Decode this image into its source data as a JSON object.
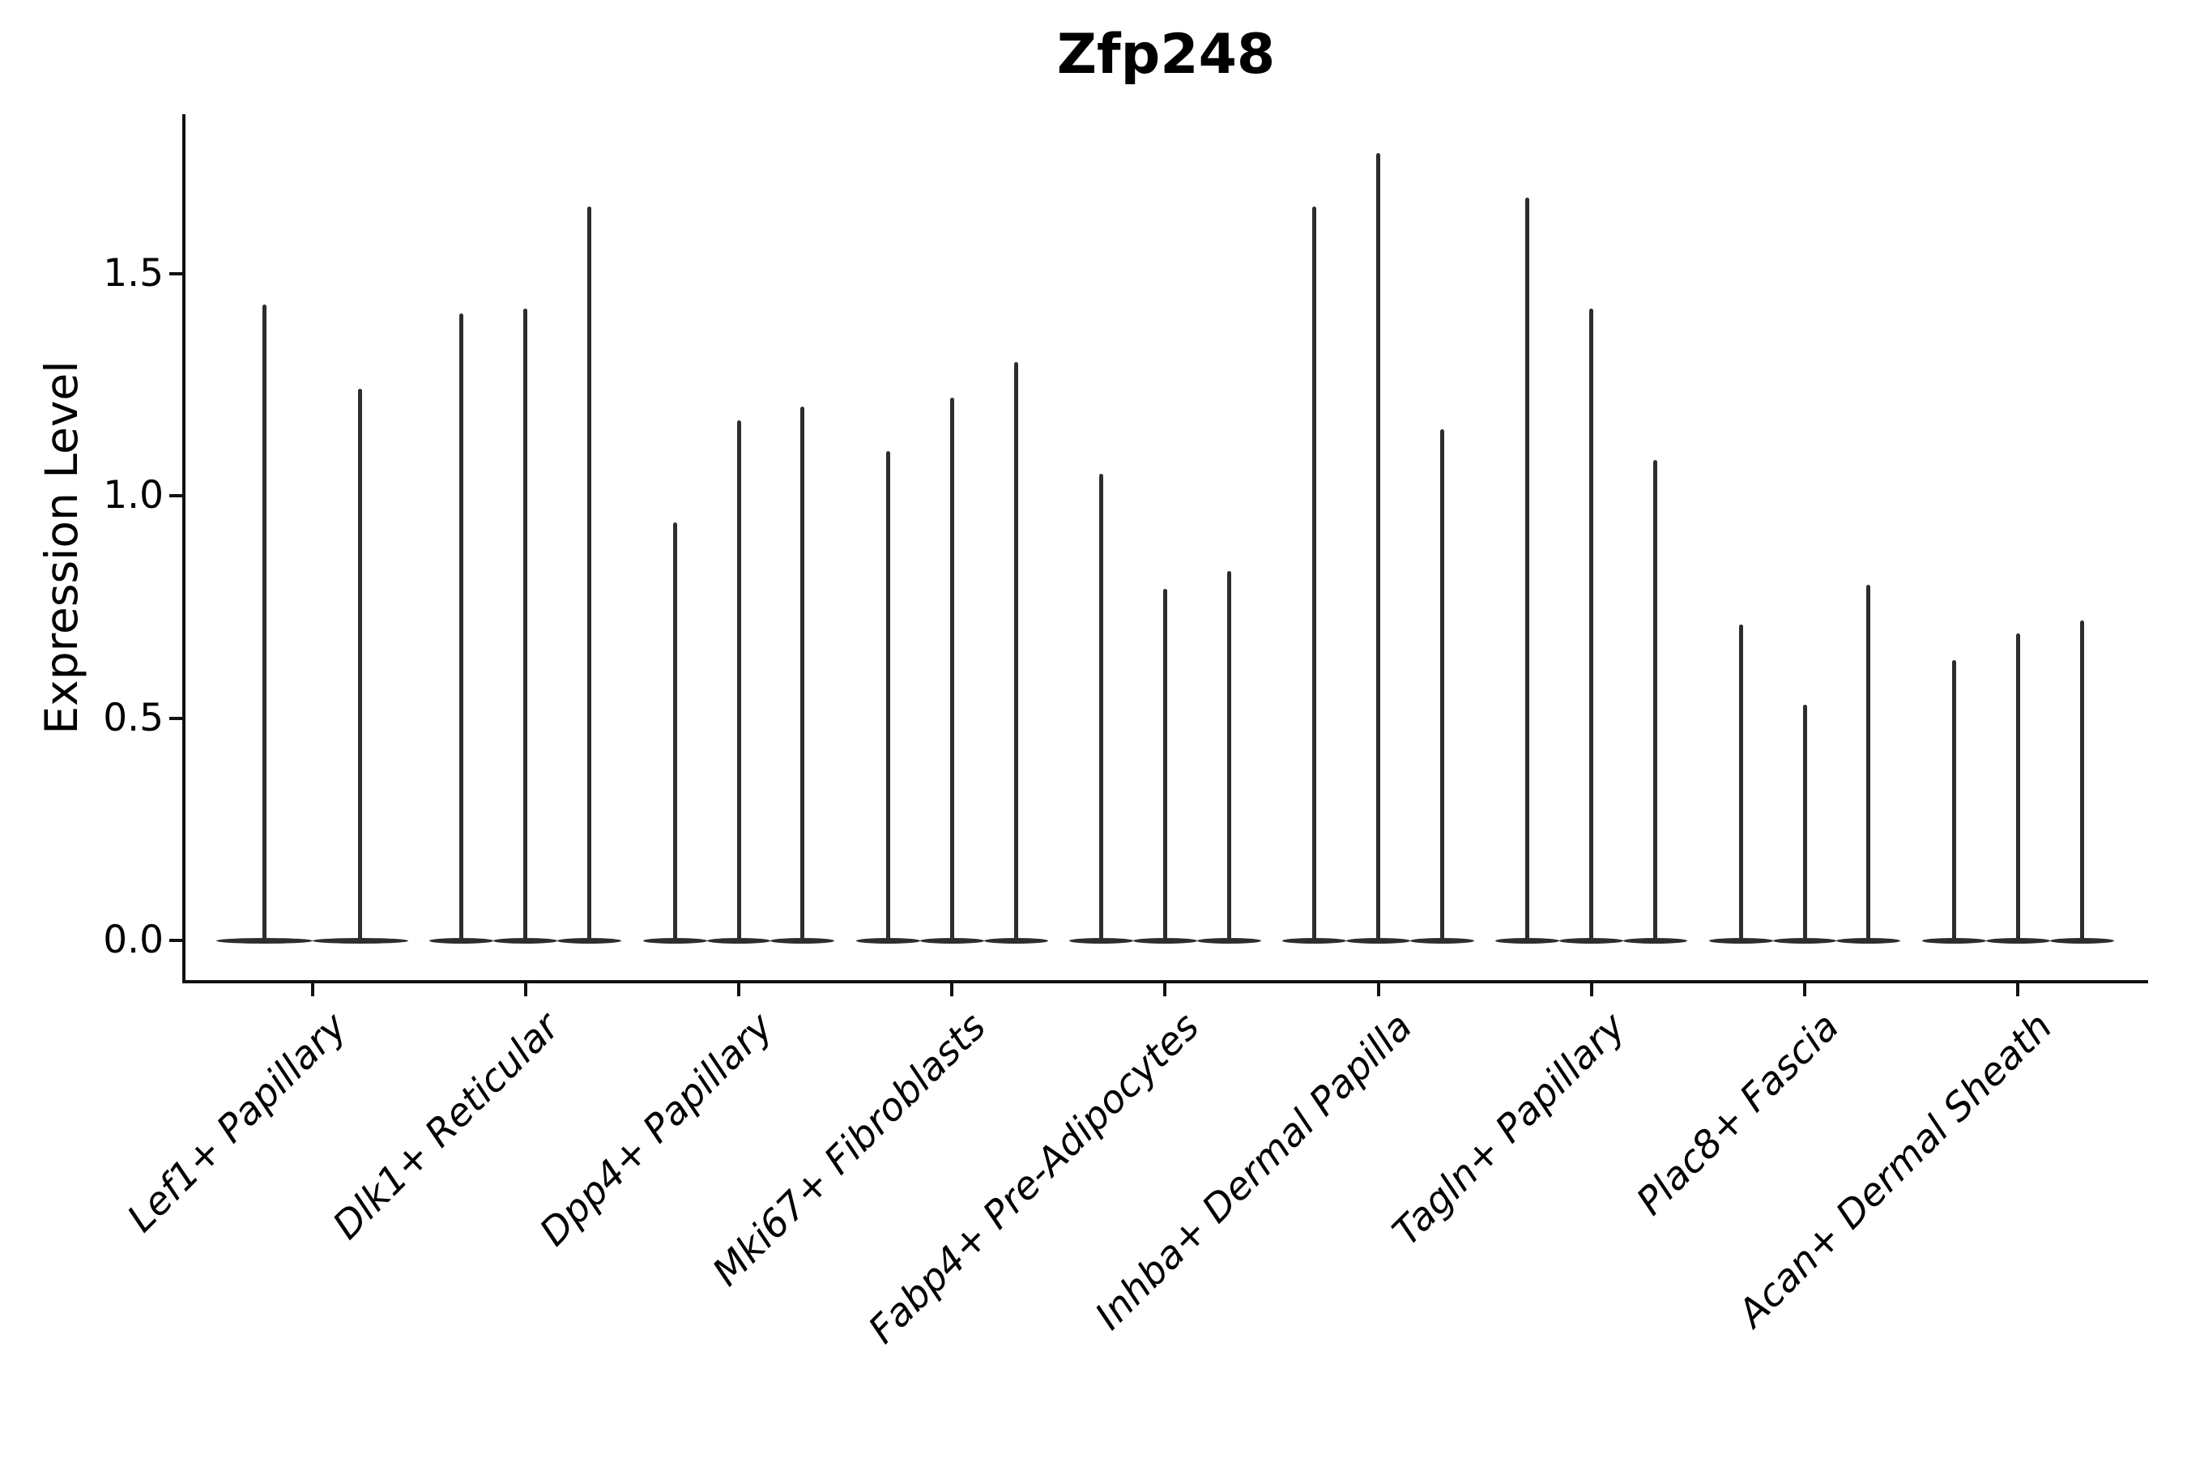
{
  "title": "Zfp248",
  "chart_data": {
    "type": "violin",
    "title": "Zfp248",
    "subtitle": "",
    "xlabel": "",
    "ylabel": "Expression Level",
    "legend_position": "none",
    "grid": false,
    "ylim": [
      -0.09,
      1.86
    ],
    "yticks": [
      "0.0",
      "0.5",
      "1.0",
      "1.5"
    ],
    "ytick_values": [
      0.0,
      0.5,
      1.0,
      1.5
    ],
    "categories": [
      "Lef1+ Papillary",
      "Dlk1+ Reticular",
      "Dpp4+ Papillary",
      "Mki67+ Fibroblasts",
      "Fabp4+ Pre-Adipocytes",
      "Inhba+ Dermal Papilla",
      "Tagln+ Papillary",
      "Plac8+ Fascia",
      "Acan+ Dermal Sheath"
    ],
    "groups": [
      {
        "category": "Lef1+ Papillary",
        "violin_maxima": [
          1.43,
          1.24
        ]
      },
      {
        "category": "Dlk1+ Reticular",
        "violin_maxima": [
          1.41,
          1.42,
          1.65
        ]
      },
      {
        "category": "Dpp4+ Papillary",
        "violin_maxima": [
          0.94,
          1.17,
          1.2
        ]
      },
      {
        "category": "Mki67+ Fibroblasts",
        "violin_maxima": [
          1.1,
          1.22,
          1.3
        ]
      },
      {
        "category": "Fabp4+ Pre-Adipocytes",
        "violin_maxima": [
          1.05,
          0.79,
          0.83
        ]
      },
      {
        "category": "Inhba+ Dermal Papilla",
        "violin_maxima": [
          1.65,
          1.77,
          1.15
        ]
      },
      {
        "category": "Tagln+ Papillary",
        "violin_maxima": [
          1.67,
          1.42,
          1.08
        ]
      },
      {
        "category": "Plac8+ Fascia",
        "violin_maxima": [
          0.71,
          0.53,
          0.8
        ]
      },
      {
        "category": "Acan+ Dermal Sheath",
        "violin_maxima": [
          0.63,
          0.69,
          0.72
        ]
      }
    ],
    "baseline_value": 0.0,
    "violin_shape": "thin-spike-with-flat-base-at-zero",
    "colors": {
      "violin": "#2d2d2d",
      "spine": "#111111",
      "text": "#000000",
      "background": "#ffffff"
    }
  }
}
